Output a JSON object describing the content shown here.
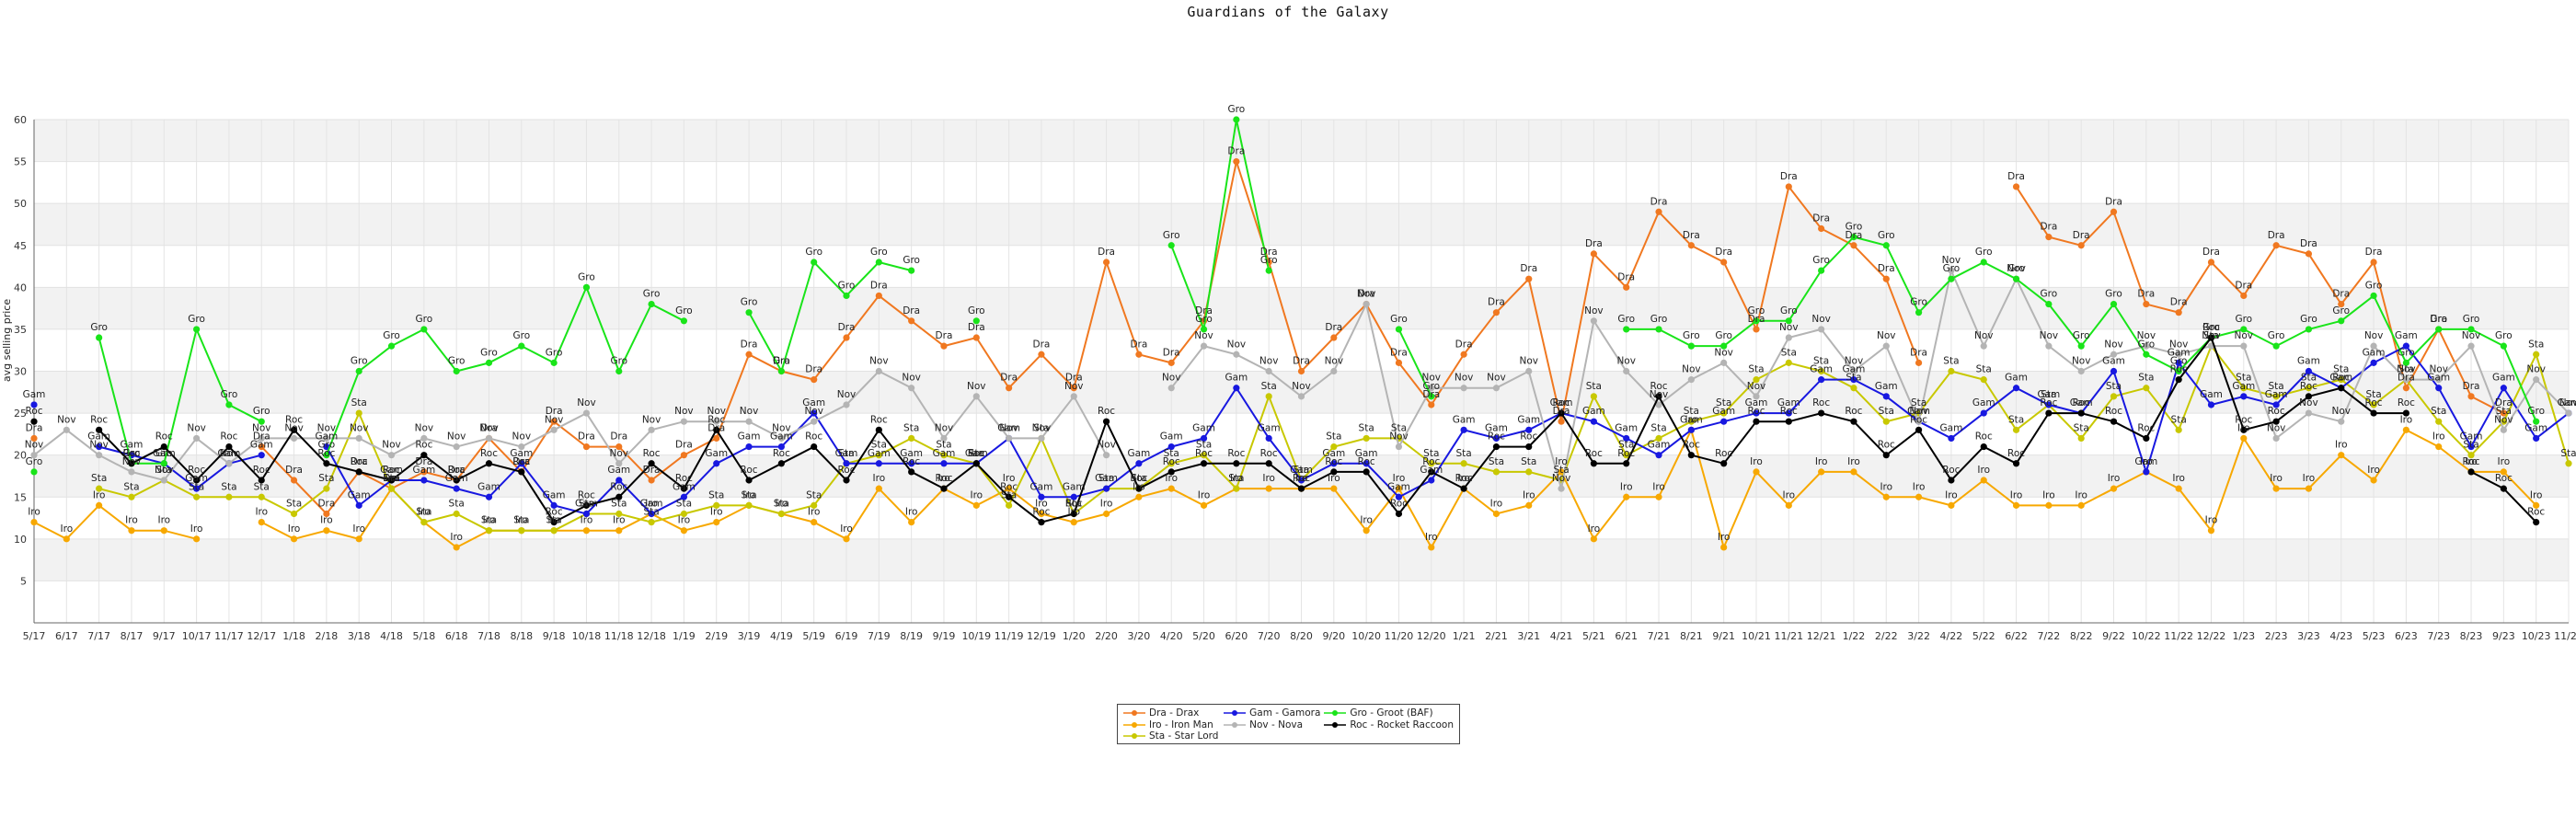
{
  "chart_data": {
    "type": "line",
    "title": "Guardians of the Galaxy",
    "xlabel": "",
    "ylabel": "avg selling price",
    "ylim": [
      0,
      60
    ],
    "yticks": [
      5,
      10,
      15,
      20,
      25,
      30,
      35,
      40,
      45,
      50,
      55,
      60
    ],
    "grid": true,
    "legend_position": "bottom-center",
    "x_tick_labels": [
      "5/17",
      "6/17",
      "7/17",
      "8/17",
      "9/17",
      "10/17",
      "11/17",
      "12/17",
      "1/18",
      "2/18",
      "3/18",
      "4/18",
      "5/18",
      "6/18",
      "7/18",
      "8/18",
      "9/18",
      "10/18",
      "11/18",
      "12/18",
      "1/19",
      "2/19",
      "3/19",
      "4/19",
      "5/19",
      "6/19",
      "7/19",
      "8/19",
      "9/19",
      "10/19",
      "11/19",
      "12/19",
      "1/20",
      "2/20",
      "3/20",
      "4/20",
      "5/20",
      "6/20",
      "7/20",
      "8/20",
      "9/20",
      "10/20",
      "11/20",
      "12/20",
      "1/21",
      "2/21",
      "3/21",
      "4/21",
      "5/21",
      "6/21",
      "7/21",
      "8/21",
      "9/21",
      "10/21",
      "11/21",
      "12/21",
      "1/22",
      "2/22",
      "3/22",
      "4/22",
      "5/22",
      "6/22",
      "7/22",
      "8/22",
      "9/22",
      "10/22",
      "11/22",
      "12/22",
      "1/23",
      "2/23",
      "3/23",
      "4/23",
      "5/23",
      "6/23",
      "7/23",
      "8/23",
      "9/23",
      "10/23",
      "11/23"
    ],
    "series": [
      {
        "name": "Dra - Drax",
        "short": "Dra",
        "color": "#f07820",
        "values": [
          22,
          null,
          null,
          null,
          null,
          null,
          null,
          21,
          17,
          13,
          18,
          16,
          18,
          17,
          22,
          18,
          24,
          21,
          21,
          17,
          20,
          22,
          32,
          30,
          29,
          34,
          39,
          36,
          33,
          34,
          28,
          32,
          28,
          43,
          32,
          31,
          36,
          55,
          43,
          30,
          34,
          38,
          31,
          26,
          32,
          37,
          41,
          24,
          44,
          40,
          49,
          45,
          43,
          35,
          52,
          47,
          45,
          41,
          31,
          null,
          null,
          52,
          46,
          45,
          49,
          38,
          37,
          43,
          39,
          45,
          44,
          38,
          43,
          28,
          35,
          27,
          25,
          null,
          null
        ]
      },
      {
        "name": "Iro - Iron Man",
        "short": "Iro",
        "color": "#f7a800",
        "values": [
          12,
          10,
          14,
          11,
          11,
          10,
          null,
          12,
          10,
          11,
          10,
          16,
          12,
          9,
          11,
          11,
          11,
          11,
          11,
          13,
          11,
          12,
          14,
          13,
          12,
          10,
          16,
          12,
          16,
          14,
          16,
          13,
          12,
          13,
          15,
          16,
          14,
          16,
          16,
          16,
          16,
          11,
          16,
          9,
          16,
          13,
          14,
          18,
          10,
          15,
          15,
          23,
          9,
          18,
          14,
          18,
          18,
          15,
          15,
          14,
          17,
          14,
          14,
          14,
          16,
          18,
          16,
          11,
          22,
          16,
          16,
          20,
          17,
          23,
          21,
          18,
          18,
          14,
          null
        ]
      },
      {
        "name": "Sta - Star Lord",
        "short": "Sta",
        "color": "#c8c800",
        "values": [
          null,
          null,
          16,
          15,
          17,
          15,
          15,
          15,
          13,
          16,
          25,
          16,
          12,
          13,
          11,
          11,
          11,
          13,
          13,
          12,
          13,
          14,
          14,
          13,
          14,
          19,
          20,
          22,
          20,
          19,
          14,
          22,
          13,
          16,
          16,
          19,
          20,
          16,
          27,
          17,
          21,
          22,
          22,
          19,
          19,
          18,
          18,
          17,
          27,
          20,
          22,
          24,
          25,
          29,
          31,
          30,
          28,
          24,
          25,
          30,
          29,
          23,
          26,
          22,
          27,
          28,
          23,
          33,
          28,
          27,
          28,
          29,
          26,
          29,
          24,
          20,
          24,
          32,
          19
        ]
      },
      {
        "name": "Gam - Gamora",
        "short": "Gam",
        "color": "#1818e0",
        "values": [
          26,
          null,
          21,
          20,
          19,
          16,
          19,
          20,
          null,
          21,
          14,
          17,
          17,
          16,
          15,
          19,
          14,
          13,
          17,
          13,
          15,
          19,
          21,
          21,
          25,
          19,
          19,
          19,
          19,
          19,
          22,
          15,
          15,
          16,
          19,
          21,
          22,
          28,
          22,
          17,
          19,
          19,
          15,
          17,
          23,
          22,
          23,
          25,
          24,
          22,
          20,
          23,
          24,
          25,
          25,
          29,
          29,
          27,
          24,
          22,
          25,
          28,
          26,
          25,
          30,
          18,
          31,
          26,
          27,
          26,
          30,
          28,
          31,
          33,
          28,
          21,
          28,
          22,
          25
        ]
      },
      {
        "name": "Nov - Nova",
        "short": "Nov",
        "color": "#b4b4b4",
        "values": [
          20,
          23,
          20,
          18,
          17,
          22,
          19,
          22,
          22,
          22,
          22,
          20,
          22,
          21,
          22,
          21,
          23,
          25,
          19,
          23,
          24,
          24,
          24,
          22,
          24,
          26,
          30,
          28,
          22,
          27,
          22,
          22,
          27,
          20,
          null,
          28,
          33,
          32,
          30,
          27,
          30,
          38,
          21,
          28,
          28,
          28,
          30,
          16,
          36,
          30,
          26,
          29,
          31,
          27,
          34,
          35,
          30,
          33,
          24,
          42,
          33,
          41,
          33,
          30,
          32,
          33,
          32,
          33,
          33,
          22,
          25,
          24,
          33,
          29,
          29,
          33,
          23,
          29,
          25
        ]
      },
      {
        "name": "Gro - Groot (BAF)",
        "short": "Gro",
        "color": "#19e419",
        "values": [
          18,
          null,
          34,
          19,
          19,
          35,
          26,
          24,
          null,
          20,
          30,
          33,
          35,
          30,
          31,
          33,
          31,
          40,
          30,
          38,
          36,
          null,
          37,
          30,
          43,
          39,
          43,
          42,
          null,
          36,
          null,
          null,
          null,
          null,
          null,
          45,
          35,
          60,
          42,
          null,
          null,
          null,
          35,
          27,
          null,
          null,
          null,
          null,
          null,
          35,
          35,
          33,
          33,
          36,
          36,
          42,
          46,
          45,
          37,
          41,
          43,
          41,
          38,
          33,
          38,
          32,
          30,
          34,
          35,
          33,
          35,
          36,
          39,
          31,
          35,
          35,
          33,
          24,
          null
        ]
      },
      {
        "name": "Roc - Rocket Raccoon",
        "short": "Roc",
        "color": "#000000",
        "values": [
          24,
          null,
          23,
          19,
          21,
          17,
          21,
          17,
          23,
          19,
          18,
          17,
          20,
          17,
          19,
          18,
          12,
          14,
          15,
          19,
          16,
          23,
          17,
          19,
          21,
          17,
          23,
          18,
          16,
          19,
          15,
          12,
          13,
          24,
          16,
          18,
          19,
          19,
          19,
          16,
          18,
          18,
          13,
          18,
          16,
          21,
          21,
          25,
          19,
          19,
          27,
          20,
          19,
          24,
          24,
          25,
          24,
          20,
          23,
          17,
          21,
          19,
          25,
          25,
          24,
          22,
          29,
          34,
          23,
          24,
          27,
          28,
          25,
          25,
          null,
          18,
          16,
          12,
          null
        ]
      }
    ]
  }
}
